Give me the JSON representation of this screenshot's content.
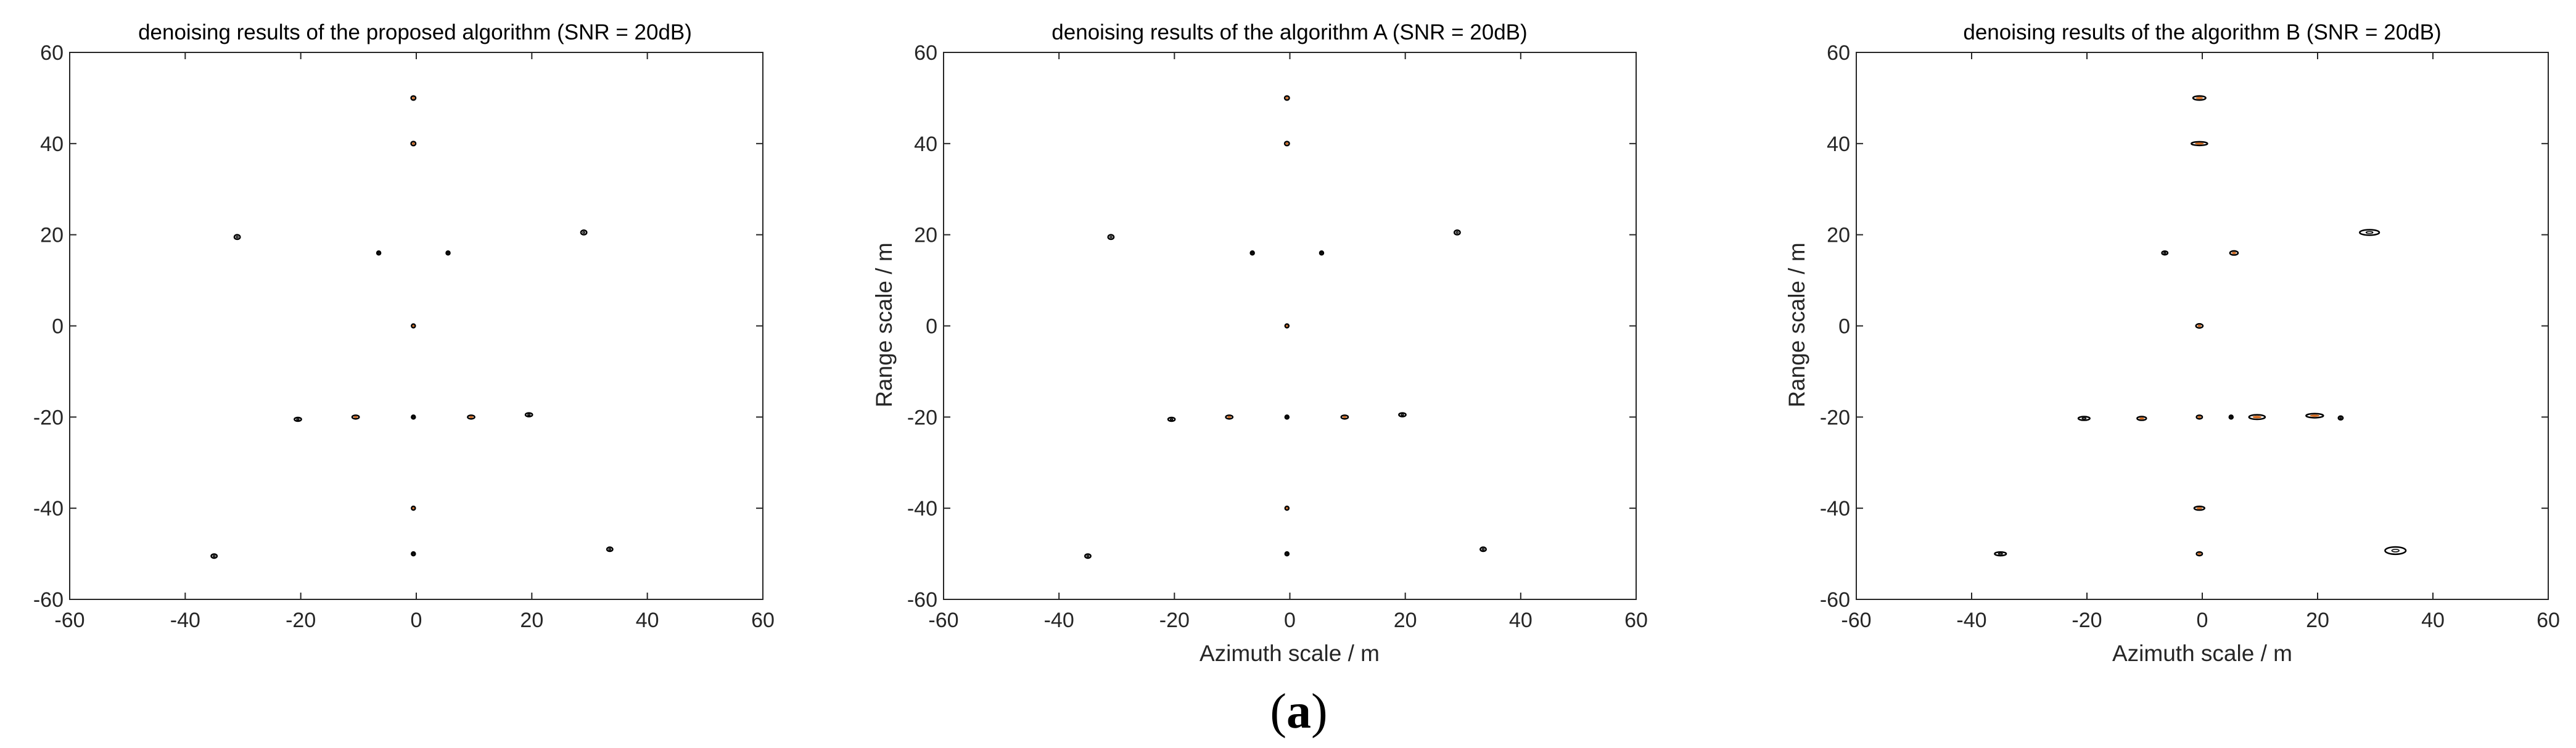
{
  "caption": {
    "open": "(",
    "letter": "a",
    "close": ")"
  },
  "colors": {
    "outer_contour": "#000000",
    "inner_contour": "#d2691e",
    "axes": "#262626"
  },
  "chart_data": [
    {
      "type": "contour",
      "title": "denoising results of the proposed algorithm (SNR = 20dB)",
      "xlabel": "",
      "ylabel": "",
      "xlim": [
        -60,
        60
      ],
      "ylim": [
        -60,
        60
      ],
      "xticks": [
        -60,
        -40,
        -20,
        0,
        20,
        40,
        60
      ],
      "yticks": [
        -60,
        -40,
        -20,
        0,
        20,
        40,
        60
      ],
      "grid": false,
      "targets": [
        {
          "x": -0.5,
          "y": 50,
          "w": 0.8,
          "h": 0.9,
          "core": true
        },
        {
          "x": -0.5,
          "y": 40,
          "w": 0.8,
          "h": 0.9,
          "core": true
        },
        {
          "x": -31,
          "y": 19.5,
          "w": 1.0,
          "h": 1.0,
          "core": false
        },
        {
          "x": 29,
          "y": 20.5,
          "w": 1.0,
          "h": 1.0,
          "core": false
        },
        {
          "x": -6.5,
          "y": 16,
          "w": 0.5,
          "h": 0.5,
          "core": false
        },
        {
          "x": 5.5,
          "y": 16,
          "w": 0.5,
          "h": 0.5,
          "core": false
        },
        {
          "x": -0.5,
          "y": 0,
          "w": 0.6,
          "h": 0.8,
          "core": true
        },
        {
          "x": -20.5,
          "y": -20.5,
          "w": 1.2,
          "h": 0.8,
          "core": false
        },
        {
          "x": -10.5,
          "y": -20,
          "w": 1.2,
          "h": 0.8,
          "core": true
        },
        {
          "x": -0.5,
          "y": -20,
          "w": 0.6,
          "h": 0.6,
          "core": false
        },
        {
          "x": 9.5,
          "y": -20,
          "w": 1.2,
          "h": 0.8,
          "core": true
        },
        {
          "x": 19.5,
          "y": -19.5,
          "w": 1.2,
          "h": 0.8,
          "core": false
        },
        {
          "x": -0.5,
          "y": -40,
          "w": 0.6,
          "h": 0.8,
          "core": true
        },
        {
          "x": -35,
          "y": -50.5,
          "w": 1.0,
          "h": 0.9,
          "core": false
        },
        {
          "x": 33.5,
          "y": -49,
          "w": 1.0,
          "h": 0.9,
          "core": false
        },
        {
          "x": -0.5,
          "y": -50,
          "w": 0.5,
          "h": 0.5,
          "core": false
        }
      ]
    },
    {
      "type": "contour",
      "title": "denoising results of the algorithm A (SNR = 20dB)",
      "xlabel": "Azimuth scale / m",
      "ylabel": "Range scale / m",
      "xlim": [
        -60,
        60
      ],
      "ylim": [
        -60,
        60
      ],
      "xticks": [
        -60,
        -40,
        -20,
        0,
        20,
        40,
        60
      ],
      "yticks": [
        -60,
        -40,
        -20,
        0,
        20,
        40,
        60
      ],
      "grid": false,
      "targets": [
        {
          "x": -0.5,
          "y": 50,
          "w": 0.8,
          "h": 0.9,
          "core": true
        },
        {
          "x": -0.5,
          "y": 40,
          "w": 0.8,
          "h": 0.9,
          "core": true
        },
        {
          "x": -31,
          "y": 19.5,
          "w": 1.0,
          "h": 1.0,
          "core": false
        },
        {
          "x": 29,
          "y": 20.5,
          "w": 1.0,
          "h": 1.0,
          "core": false
        },
        {
          "x": -6.5,
          "y": 16,
          "w": 0.5,
          "h": 0.5,
          "core": false
        },
        {
          "x": 5.5,
          "y": 16,
          "w": 0.5,
          "h": 0.5,
          "core": false
        },
        {
          "x": -0.5,
          "y": 0,
          "w": 0.6,
          "h": 0.8,
          "core": true
        },
        {
          "x": -20.5,
          "y": -20.5,
          "w": 1.2,
          "h": 0.8,
          "core": false
        },
        {
          "x": -10.5,
          "y": -20,
          "w": 1.2,
          "h": 0.8,
          "core": true
        },
        {
          "x": -0.5,
          "y": -20,
          "w": 0.6,
          "h": 0.6,
          "core": false
        },
        {
          "x": 9.5,
          "y": -20,
          "w": 1.2,
          "h": 0.8,
          "core": true
        },
        {
          "x": 19.5,
          "y": -19.5,
          "w": 1.2,
          "h": 0.8,
          "core": false
        },
        {
          "x": -0.5,
          "y": -40,
          "w": 0.6,
          "h": 0.8,
          "core": true
        },
        {
          "x": -35,
          "y": -50.5,
          "w": 1.0,
          "h": 0.9,
          "core": false
        },
        {
          "x": 33.5,
          "y": -49,
          "w": 1.0,
          "h": 0.9,
          "core": false
        },
        {
          "x": -0.5,
          "y": -50,
          "w": 0.5,
          "h": 0.5,
          "core": false
        }
      ]
    },
    {
      "type": "contour",
      "title": "denoising results of the algorithm B (SNR = 20dB)",
      "xlabel": "Azimuth scale / m",
      "ylabel": "Range scale / m",
      "xlim": [
        -60,
        60
      ],
      "ylim": [
        -60,
        60
      ],
      "xticks": [
        -60,
        -40,
        -20,
        0,
        20,
        40,
        60
      ],
      "yticks": [
        -60,
        -40,
        -20,
        0,
        20,
        40,
        60
      ],
      "grid": false,
      "targets": [
        {
          "x": -0.5,
          "y": 50,
          "w": 2.2,
          "h": 0.9,
          "core": true
        },
        {
          "x": -0.5,
          "y": 40,
          "w": 2.8,
          "h": 0.7,
          "core": true
        },
        {
          "x": 29,
          "y": 20.5,
          "w": 3.4,
          "h": 1.2,
          "core": false
        },
        {
          "x": -6.5,
          "y": 16,
          "w": 1.0,
          "h": 0.8,
          "core": false
        },
        {
          "x": 5.5,
          "y": 16,
          "w": 1.4,
          "h": 0.9,
          "core": true
        },
        {
          "x": -0.5,
          "y": 0,
          "w": 1.2,
          "h": 0.9,
          "core": true
        },
        {
          "x": -20.5,
          "y": -20.3,
          "w": 2.0,
          "h": 0.6,
          "core": false
        },
        {
          "x": -10.5,
          "y": -20.3,
          "w": 1.6,
          "h": 0.8,
          "core": true
        },
        {
          "x": -0.5,
          "y": -20,
          "w": 1.0,
          "h": 0.7,
          "core": true
        },
        {
          "x": 5,
          "y": -20,
          "w": 0.5,
          "h": 0.4,
          "core": false
        },
        {
          "x": 9.5,
          "y": -20,
          "w": 2.8,
          "h": 1.0,
          "core": true
        },
        {
          "x": 19.5,
          "y": -19.7,
          "w": 3.0,
          "h": 0.9,
          "core": true
        },
        {
          "x": 24,
          "y": -20.2,
          "w": 0.8,
          "h": 0.5,
          "core": false
        },
        {
          "x": -0.5,
          "y": -40,
          "w": 1.8,
          "h": 0.8,
          "core": true
        },
        {
          "x": -35,
          "y": -50,
          "w": 2.0,
          "h": 0.6,
          "core": false
        },
        {
          "x": 33.5,
          "y": -49.3,
          "w": 3.6,
          "h": 1.6,
          "core": false
        },
        {
          "x": -0.5,
          "y": -50,
          "w": 1.0,
          "h": 0.7,
          "core": true
        }
      ]
    }
  ]
}
